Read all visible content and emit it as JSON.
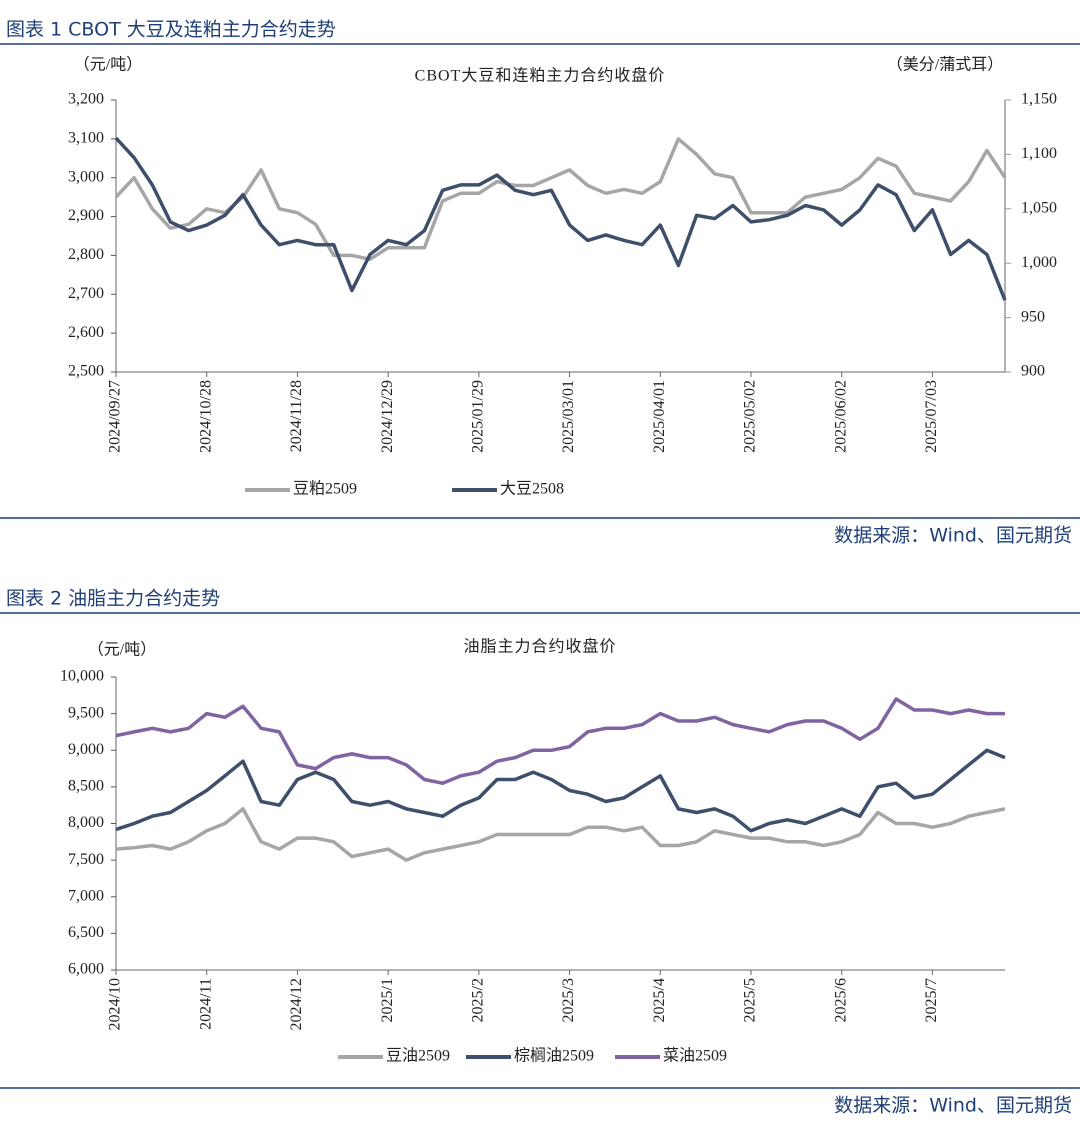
{
  "figures": [
    {
      "caption": "图表 1 CBOT 大豆及连粕主力合约走势",
      "source": "数据来源：Wind、国元期货"
    },
    {
      "caption": "图表 2 油脂主力合约走势",
      "source": "数据来源：Wind、国元期货"
    }
  ],
  "chart_data": [
    {
      "type": "line",
      "title": "CBOT大豆和连粕主力合约收盘价",
      "y_label": "（元/吨）",
      "y2_label": "（美分/蒲式耳）",
      "categories": [
        "2024/09/27",
        null,
        null,
        null,
        null,
        "2024/10/28",
        null,
        null,
        null,
        null,
        "2024/11/28",
        null,
        null,
        null,
        null,
        "2024/12/29",
        null,
        null,
        null,
        null,
        "2025/01/29",
        null,
        null,
        null,
        null,
        "2025/03/01",
        null,
        null,
        null,
        null,
        "2025/04/01",
        null,
        null,
        null,
        null,
        "2025/05/02",
        null,
        null,
        null,
        null,
        "2025/06/02",
        null,
        null,
        null,
        null,
        "2025/07/03",
        null,
        null,
        null,
        null
      ],
      "ylim": [
        2500,
        3200
      ],
      "yticks": [
        {
          "value": 2500,
          "label": "2,500"
        },
        {
          "value": 2600,
          "label": "2,600"
        },
        {
          "value": 2700,
          "label": "2,700"
        },
        {
          "value": 2800,
          "label": "2,800"
        },
        {
          "value": 2900,
          "label": "2,900"
        },
        {
          "value": 3000,
          "label": "3,000"
        },
        {
          "value": 3100,
          "label": "3,100"
        },
        {
          "value": 3200,
          "label": "3,200"
        }
      ],
      "y2lim": [
        900,
        1150
      ],
      "y2ticks": [
        900,
        950,
        {
          "value": 1000,
          "label": "1,000"
        },
        {
          "value": 1050,
          "label": "1,050"
        },
        {
          "value": 1100,
          "label": "1,100"
        },
        {
          "value": 1150,
          "label": "1,150"
        }
      ],
      "series": [
        {
          "name": "豆粕2509",
          "color": "#a6a6a6",
          "values": [
            2950,
            3000,
            2920,
            2870,
            2880,
            2920,
            2910,
            2950,
            3020,
            2920,
            2910,
            2880,
            2800,
            2800,
            2790,
            2820,
            2820,
            2820,
            2940,
            2960,
            2960,
            2990,
            2980,
            2980,
            3000,
            3020,
            2980,
            2960,
            2970,
            2960,
            2990,
            3100,
            3060,
            3010,
            3000,
            2910,
            2910,
            2910,
            2950,
            2960,
            2970,
            3000,
            3050,
            3030,
            2960,
            2950,
            2940,
            2990,
            3070,
            3000
          ]
        },
        {
          "name": "大豆2508",
          "color": "#3d4f6a",
          "axis": "y2",
          "values": [
            1115,
            1097,
            1072,
            1038,
            1030,
            1035,
            1044,
            1063,
            1035,
            1017,
            1021,
            1017,
            1017,
            975,
            1008,
            1021,
            1017,
            1030,
            1067,
            1072,
            1072,
            1081,
            1067,
            1063,
            1067,
            1035,
            1021,
            1026,
            1021,
            1017,
            1035,
            998,
            1044,
            1041,
            1053,
            1038,
            1040,
            1044,
            1053,
            1049,
            1035,
            1049,
            1072,
            1063,
            1030,
            1049,
            1008,
            1021,
            1008,
            966
          ]
        }
      ]
    },
    {
      "type": "line",
      "title": "油脂主力合约收盘价",
      "y_label": "（元/吨）",
      "categories": [
        "2024/10",
        null,
        null,
        null,
        null,
        "2024/11",
        null,
        null,
        null,
        null,
        "2024/12",
        null,
        null,
        null,
        null,
        "2025/1",
        null,
        null,
        null,
        null,
        "2025/2",
        null,
        null,
        null,
        null,
        "2025/3",
        null,
        null,
        null,
        null,
        "2025/4",
        null,
        null,
        null,
        null,
        "2025/5",
        null,
        null,
        null,
        null,
        "2025/6",
        null,
        null,
        null,
        null,
        "2025/7",
        null,
        null,
        null,
        null
      ],
      "ylim": [
        6000,
        10000
      ],
      "yticks": [
        {
          "value": 6000,
          "label": "6,000"
        },
        {
          "value": 6500,
          "label": "6,500"
        },
        {
          "value": 7000,
          "label": "7,000"
        },
        {
          "value": 7500,
          "label": "7,500"
        },
        {
          "value": 8000,
          "label": "8,000"
        },
        {
          "value": 8500,
          "label": "8,500"
        },
        {
          "value": 9000,
          "label": "9,000"
        },
        {
          "value": 9500,
          "label": "9,500"
        },
        {
          "value": 10000,
          "label": "10,000"
        }
      ],
      "series": [
        {
          "name": "豆油2509",
          "color": "#a6a6a6",
          "values": [
            7650,
            7670,
            7700,
            7650,
            7750,
            7900,
            8000,
            8200,
            7750,
            7650,
            7800,
            7800,
            7750,
            7550,
            7600,
            7650,
            7500,
            7600,
            7650,
            7700,
            7750,
            7850,
            7850,
            7850,
            7850,
            7850,
            7950,
            7950,
            7900,
            7950,
            7700,
            7700,
            7750,
            7900,
            7850,
            7800,
            7800,
            7750,
            7750,
            7700,
            7750,
            7850,
            8150,
            8000,
            8000,
            7950,
            8000,
            8100,
            8150,
            8200
          ]
        },
        {
          "name": "棕榈油2509",
          "color": "#3d4f6a",
          "values": [
            7920,
            8000,
            8100,
            8150,
            8300,
            8450,
            8650,
            8850,
            8300,
            8250,
            8600,
            8700,
            8600,
            8300,
            8250,
            8300,
            8200,
            8150,
            8100,
            8250,
            8350,
            8600,
            8600,
            8700,
            8600,
            8450,
            8400,
            8300,
            8350,
            8500,
            8650,
            8200,
            8150,
            8200,
            8100,
            7900,
            8000,
            8050,
            8000,
            8100,
            8200,
            8100,
            8500,
            8550,
            8350,
            8400,
            8600,
            8800,
            9000,
            8900
          ]
        },
        {
          "name": "菜油2509",
          "color": "#8064a2",
          "values": [
            9200,
            9250,
            9300,
            9250,
            9300,
            9500,
            9450,
            9600,
            9300,
            9250,
            8800,
            8750,
            8900,
            8950,
            8900,
            8900,
            8800,
            8600,
            8550,
            8650,
            8700,
            8850,
            8900,
            9000,
            9000,
            9050,
            9250,
            9300,
            9300,
            9350,
            9500,
            9400,
            9400,
            9450,
            9350,
            9300,
            9250,
            9350,
            9400,
            9400,
            9300,
            9150,
            9300,
            9700,
            9550,
            9550,
            9500,
            9550,
            9500,
            9500
          ]
        }
      ]
    }
  ]
}
